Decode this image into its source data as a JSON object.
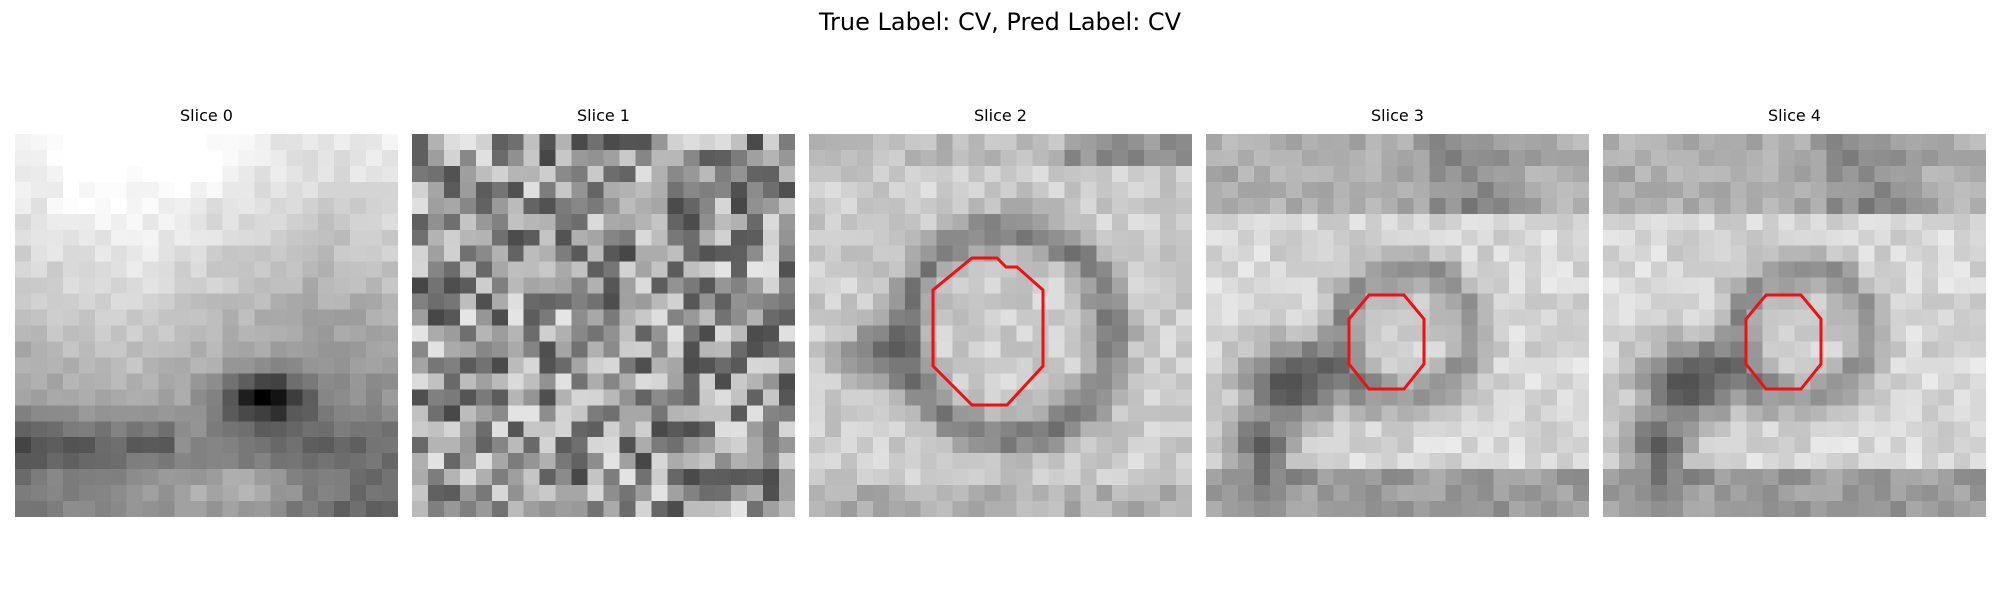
{
  "title": "True Label: CV, Pred Label: CV",
  "contour_color": "#ee1111",
  "slices": [
    {
      "label": "Slice 0",
      "texture": "smooth",
      "has_contour": false
    },
    {
      "label": "Slice 1",
      "texture": "noise",
      "has_contour": true,
      "has_contour_visible": false
    },
    {
      "label": "Slice 2",
      "texture": "ring",
      "has_contour": true
    },
    {
      "label": "Slice 3",
      "texture": "blob",
      "has_contour": true
    },
    {
      "label": "Slice 4",
      "texture": "blob",
      "has_contour": true
    }
  ]
}
